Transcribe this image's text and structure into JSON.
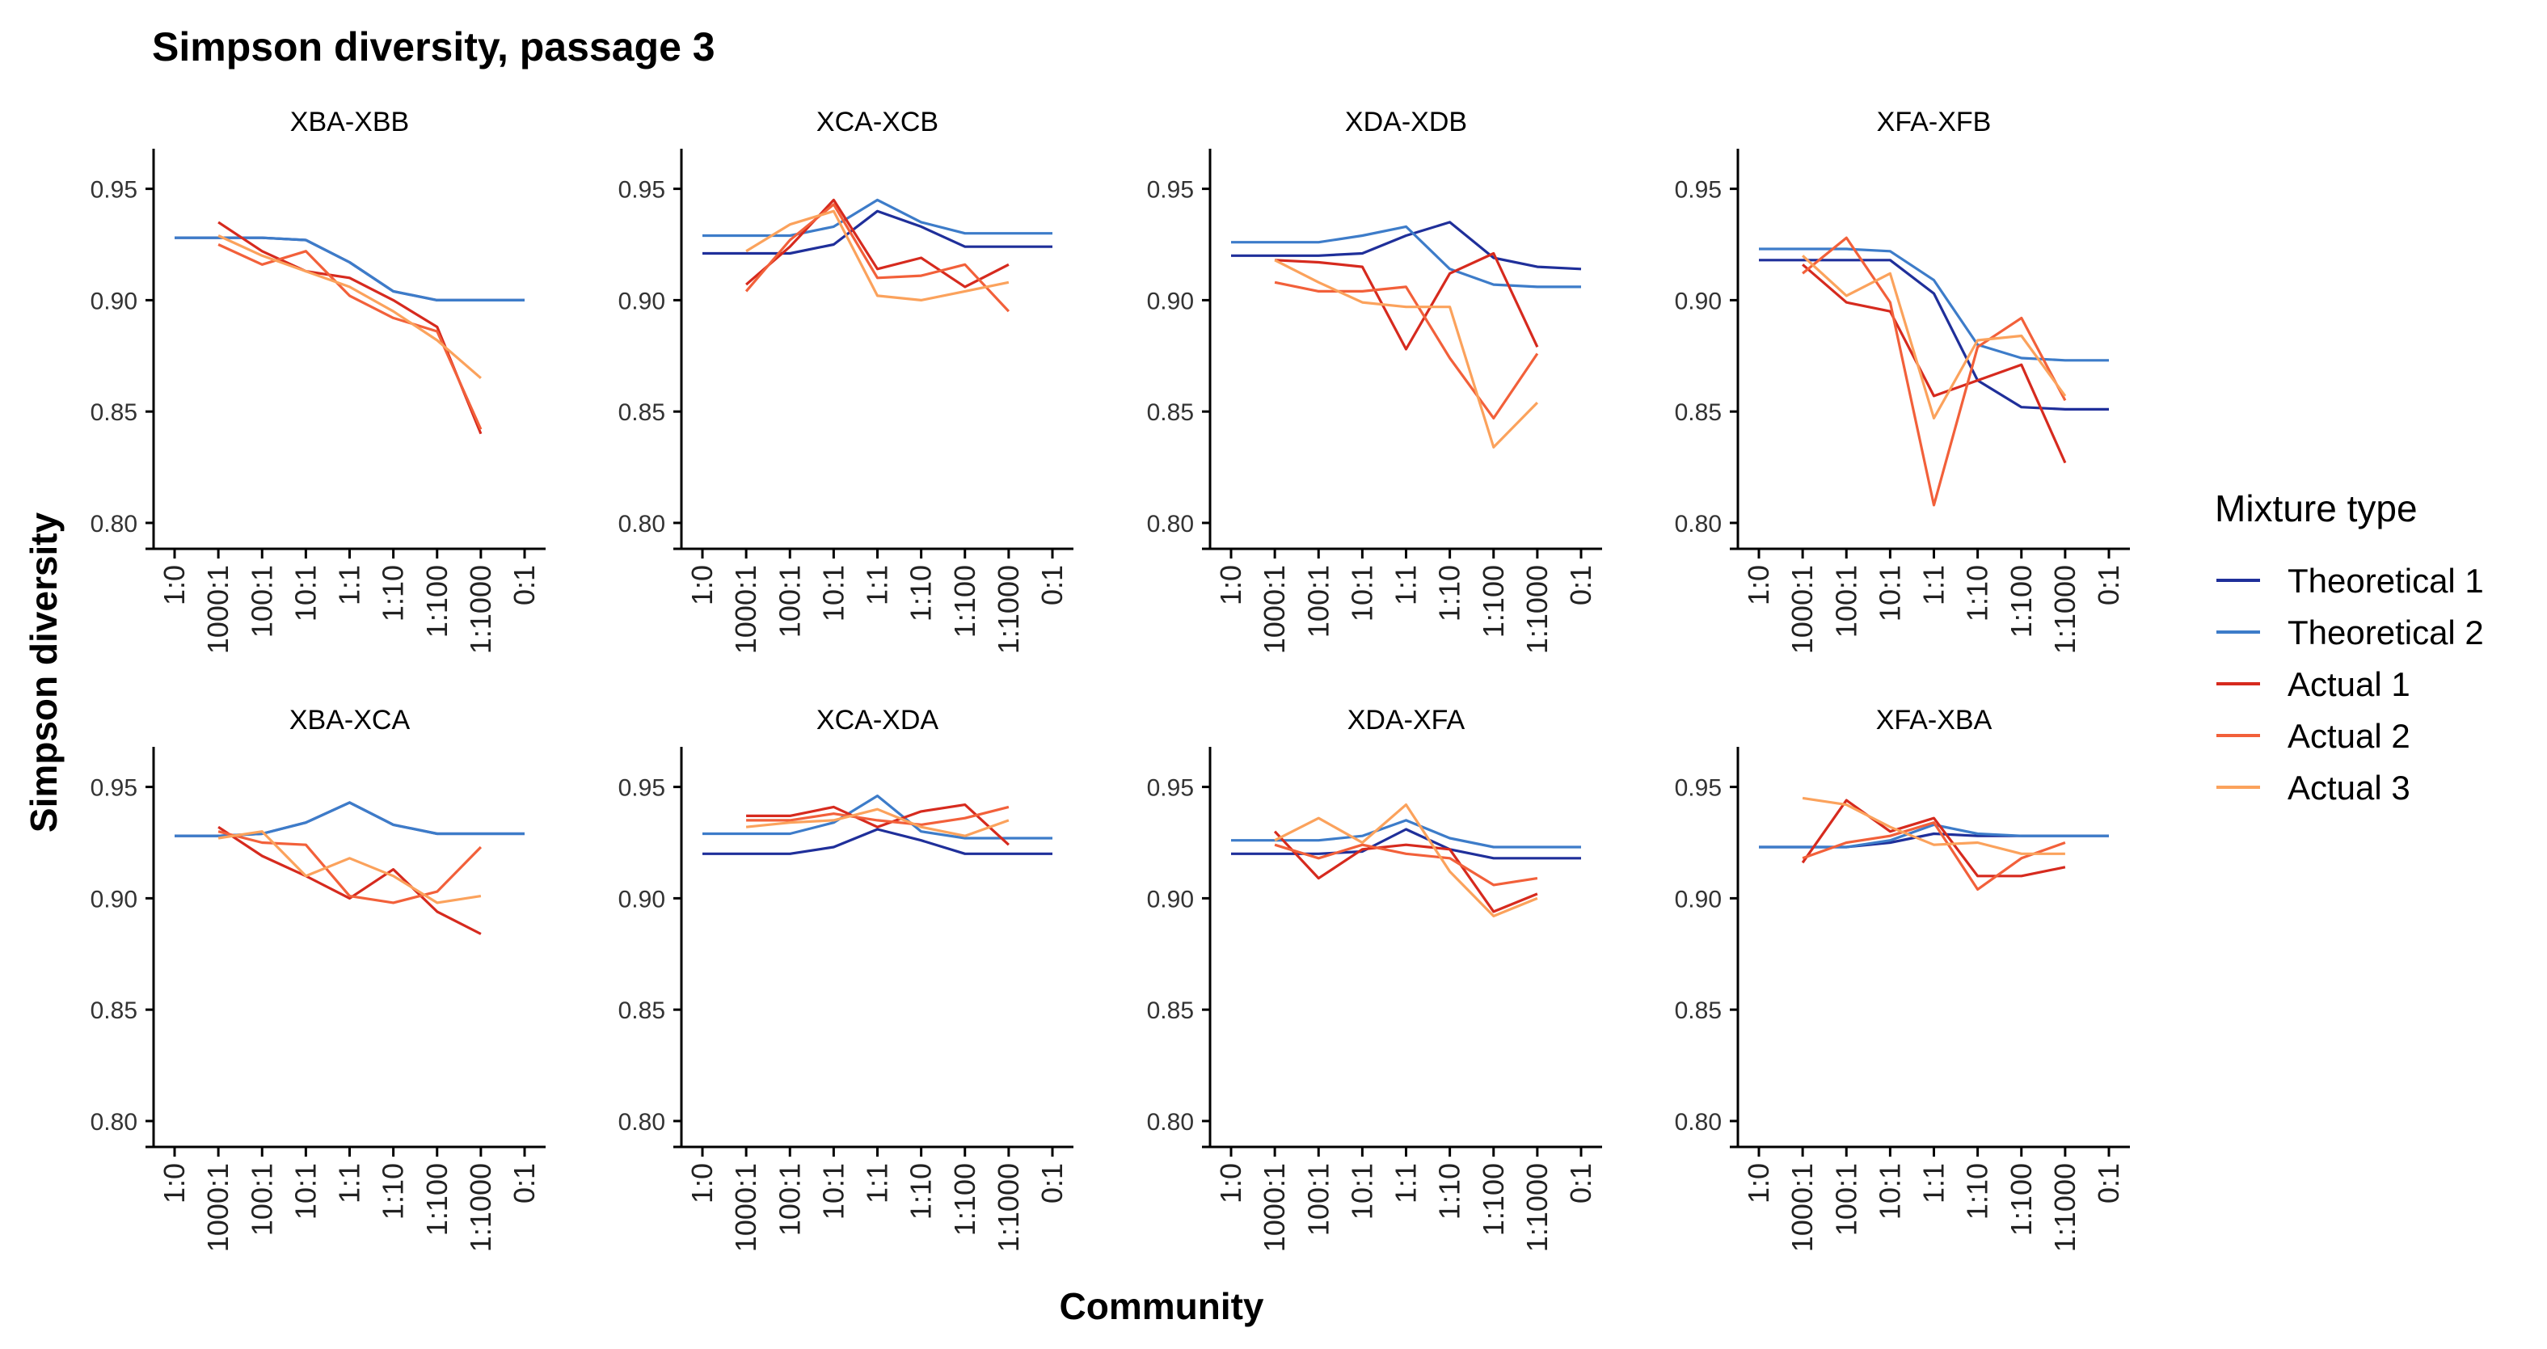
{
  "chart_data": {
    "type": "line",
    "title": "Simpson diversity, passage 3",
    "xlabel": "Community",
    "ylabel": "Simpson diversity",
    "categories": [
      "1:0",
      "1000:1",
      "100:1",
      "10:1",
      "1:1",
      "1:10",
      "1:100",
      "1:1000",
      "0:1"
    ],
    "ylim": [
      0.792,
      0.968
    ],
    "yticks": [
      0.8,
      0.85,
      0.9,
      0.95
    ],
    "ytick_labels": [
      "0.80",
      "0.85",
      "0.90",
      "0.95"
    ],
    "grid": false,
    "legend": {
      "title": "Mixture type",
      "placement": "right",
      "entries": [
        "Theoretical 1",
        "Theoretical 2",
        "Actual 1",
        "Actual 2",
        "Actual 3"
      ]
    },
    "colors": {
      "Theoretical 1": "#1f2f9a",
      "Theoretical 2": "#3d7cc9",
      "Actual 1": "#d62a1e",
      "Actual 2": "#f2603a",
      "Actual 3": "#fba25c"
    },
    "panels": [
      {
        "name": "XBA-XBB",
        "series": [
          {
            "name": "Theoretical 1",
            "values": [
              0.928,
              0.928,
              0.928,
              0.927,
              0.917,
              0.904,
              0.9,
              0.9,
              0.9
            ]
          },
          {
            "name": "Theoretical 2",
            "values": [
              0.928,
              0.928,
              0.928,
              0.927,
              0.917,
              0.904,
              0.9,
              0.9,
              0.9
            ]
          },
          {
            "name": "Actual 1",
            "values": [
              null,
              0.935,
              0.922,
              0.913,
              0.91,
              0.9,
              0.888,
              0.84,
              null
            ]
          },
          {
            "name": "Actual 2",
            "values": [
              null,
              0.925,
              0.916,
              0.922,
              0.902,
              0.892,
              0.886,
              0.842,
              null
            ]
          },
          {
            "name": "Actual 3",
            "values": [
              null,
              0.929,
              0.92,
              0.913,
              0.906,
              0.895,
              0.882,
              0.865,
              null
            ]
          }
        ]
      },
      {
        "name": "XCA-XCB",
        "series": [
          {
            "name": "Theoretical 1",
            "values": [
              0.921,
              0.921,
              0.921,
              0.925,
              0.94,
              0.933,
              0.924,
              0.924,
              0.924
            ]
          },
          {
            "name": "Theoretical 2",
            "values": [
              0.929,
              0.929,
              0.929,
              0.933,
              0.945,
              0.935,
              0.93,
              0.93,
              0.93
            ]
          },
          {
            "name": "Actual 1",
            "values": [
              null,
              0.907,
              0.924,
              0.945,
              0.914,
              0.919,
              0.906,
              0.916,
              null
            ]
          },
          {
            "name": "Actual 2",
            "values": [
              null,
              0.904,
              0.927,
              0.943,
              0.91,
              0.911,
              0.916,
              0.895,
              null
            ]
          },
          {
            "name": "Actual 3",
            "values": [
              null,
              0.922,
              0.934,
              0.94,
              0.902,
              0.9,
              0.904,
              0.908,
              null
            ]
          }
        ]
      },
      {
        "name": "XDA-XDB",
        "series": [
          {
            "name": "Theoretical 1",
            "values": [
              0.92,
              0.92,
              0.92,
              0.921,
              0.929,
              0.935,
              0.919,
              0.915,
              0.914
            ]
          },
          {
            "name": "Theoretical 2",
            "values": [
              0.926,
              0.926,
              0.926,
              0.929,
              0.933,
              0.914,
              0.907,
              0.906,
              0.906
            ]
          },
          {
            "name": "Actual 1",
            "values": [
              null,
              0.918,
              0.917,
              0.915,
              0.878,
              0.912,
              0.921,
              0.879,
              null
            ]
          },
          {
            "name": "Actual 2",
            "values": [
              null,
              0.908,
              0.904,
              0.904,
              0.906,
              0.874,
              0.847,
              0.876,
              null
            ]
          },
          {
            "name": "Actual 3",
            "values": [
              null,
              0.918,
              0.908,
              0.899,
              0.897,
              0.897,
              0.834,
              0.854,
              null
            ]
          }
        ]
      },
      {
        "name": "XFA-XFB",
        "series": [
          {
            "name": "Theoretical 1",
            "values": [
              0.918,
              0.918,
              0.918,
              0.918,
              0.903,
              0.864,
              0.852,
              0.851,
              0.851
            ]
          },
          {
            "name": "Theoretical 2",
            "values": [
              0.923,
              0.923,
              0.923,
              0.922,
              0.909,
              0.88,
              0.874,
              0.873,
              0.873
            ]
          },
          {
            "name": "Actual 1",
            "values": [
              null,
              0.916,
              0.899,
              0.895,
              0.857,
              0.864,
              0.871,
              0.827,
              null
            ]
          },
          {
            "name": "Actual 2",
            "values": [
              null,
              0.912,
              0.928,
              0.899,
              0.808,
              0.879,
              0.892,
              0.855,
              null
            ]
          },
          {
            "name": "Actual 3",
            "values": [
              null,
              0.92,
              0.902,
              0.912,
              0.847,
              0.882,
              0.884,
              0.857,
              null
            ]
          }
        ]
      },
      {
        "name": "XBA-XCA",
        "series": [
          {
            "name": "Theoretical 1",
            "values": [
              0.928,
              0.928,
              0.929,
              0.934,
              0.943,
              0.933,
              0.929,
              0.929,
              0.929
            ]
          },
          {
            "name": "Theoretical 2",
            "values": [
              0.928,
              0.928,
              0.929,
              0.934,
              0.943,
              0.933,
              0.929,
              0.929,
              0.929
            ]
          },
          {
            "name": "Actual 1",
            "values": [
              null,
              0.932,
              0.919,
              0.91,
              0.9,
              0.913,
              0.894,
              0.884,
              null
            ]
          },
          {
            "name": "Actual 2",
            "values": [
              null,
              0.93,
              0.925,
              0.924,
              0.901,
              0.898,
              0.903,
              0.923,
              null
            ]
          },
          {
            "name": "Actual 3",
            "values": [
              null,
              0.927,
              0.93,
              0.91,
              0.918,
              0.91,
              0.898,
              0.901,
              null
            ]
          }
        ]
      },
      {
        "name": "XCA-XDA",
        "series": [
          {
            "name": "Theoretical 1",
            "values": [
              0.92,
              0.92,
              0.92,
              0.923,
              0.931,
              0.926,
              0.92,
              0.92,
              0.92
            ]
          },
          {
            "name": "Theoretical 2",
            "values": [
              0.929,
              0.929,
              0.929,
              0.934,
              0.946,
              0.93,
              0.927,
              0.927,
              0.927
            ]
          },
          {
            "name": "Actual 1",
            "values": [
              null,
              0.937,
              0.937,
              0.941,
              0.932,
              0.939,
              0.942,
              0.924,
              null
            ]
          },
          {
            "name": "Actual 2",
            "values": [
              null,
              0.935,
              0.935,
              0.938,
              0.935,
              0.933,
              0.936,
              0.941,
              null
            ]
          },
          {
            "name": "Actual 3",
            "values": [
              null,
              0.932,
              0.934,
              0.935,
              0.94,
              0.932,
              0.928,
              0.935,
              null
            ]
          }
        ]
      },
      {
        "name": "XDA-XFA",
        "series": [
          {
            "name": "Theoretical 1",
            "values": [
              0.92,
              0.92,
              0.92,
              0.921,
              0.931,
              0.922,
              0.918,
              0.918,
              0.918
            ]
          },
          {
            "name": "Theoretical 2",
            "values": [
              0.926,
              0.926,
              0.926,
              0.928,
              0.935,
              0.927,
              0.923,
              0.923,
              0.923
            ]
          },
          {
            "name": "Actual 1",
            "values": [
              null,
              0.93,
              0.909,
              0.922,
              0.924,
              0.922,
              0.894,
              0.902,
              null
            ]
          },
          {
            "name": "Actual 2",
            "values": [
              null,
              0.924,
              0.918,
              0.924,
              0.92,
              0.918,
              0.906,
              0.909,
              null
            ]
          },
          {
            "name": "Actual 3",
            "values": [
              null,
              0.926,
              0.936,
              0.925,
              0.942,
              0.912,
              0.892,
              0.9,
              null
            ]
          }
        ]
      },
      {
        "name": "XFA-XBA",
        "series": [
          {
            "name": "Theoretical 1",
            "values": [
              0.923,
              0.923,
              0.923,
              0.925,
              0.929,
              0.928,
              0.928,
              0.928,
              0.928
            ]
          },
          {
            "name": "Theoretical 2",
            "values": [
              0.923,
              0.923,
              0.923,
              0.926,
              0.933,
              0.929,
              0.928,
              0.928,
              0.928
            ]
          },
          {
            "name": "Actual 1",
            "values": [
              null,
              0.916,
              0.944,
              0.93,
              0.936,
              0.91,
              0.91,
              0.914,
              null
            ]
          },
          {
            "name": "Actual 2",
            "values": [
              null,
              0.918,
              0.925,
              0.928,
              0.934,
              0.904,
              0.918,
              0.925,
              null
            ]
          },
          {
            "name": "Actual 3",
            "values": [
              null,
              0.945,
              0.942,
              0.932,
              0.924,
              0.925,
              0.92,
              0.92,
              null
            ]
          }
        ]
      }
    ]
  }
}
